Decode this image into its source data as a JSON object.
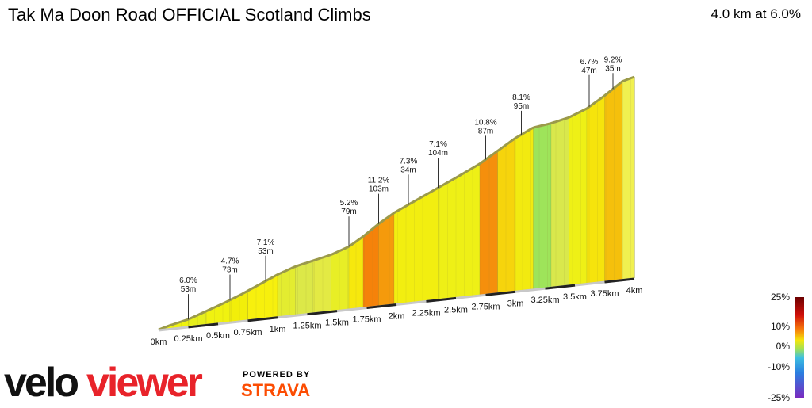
{
  "header": {
    "title": "Tak Ma Doon Road OFFICIAL Scotland Climbs",
    "summary": "4.0 km at 6.0%"
  },
  "chart_data": {
    "type": "area",
    "x_unit": "km",
    "x_ticks": [
      "0km",
      "0.25km",
      "0.5km",
      "0.75km",
      "1km",
      "1.25km",
      "1.5km",
      "1.75km",
      "2km",
      "2.25km",
      "2.5km",
      "2.75km",
      "3km",
      "3.25km",
      "3.5km",
      "3.75km",
      "4km"
    ],
    "profile": [
      {
        "d": 0.0,
        "e": 0
      },
      {
        "d": 0.1,
        "e": 4
      },
      {
        "d": 0.25,
        "e": 9
      },
      {
        "d": 0.4,
        "e": 17
      },
      {
        "d": 0.55,
        "e": 25
      },
      {
        "d": 0.7,
        "e": 34
      },
      {
        "d": 0.85,
        "e": 44
      },
      {
        "d": 1.0,
        "e": 54
      },
      {
        "d": 1.15,
        "e": 62
      },
      {
        "d": 1.3,
        "e": 67
      },
      {
        "d": 1.45,
        "e": 72
      },
      {
        "d": 1.6,
        "e": 80
      },
      {
        "d": 1.72,
        "e": 91
      },
      {
        "d": 1.85,
        "e": 105
      },
      {
        "d": 1.98,
        "e": 117
      },
      {
        "d": 2.15,
        "e": 129
      },
      {
        "d": 2.35,
        "e": 143
      },
      {
        "d": 2.55,
        "e": 157
      },
      {
        "d": 2.7,
        "e": 168
      },
      {
        "d": 2.85,
        "e": 182
      },
      {
        "d": 3.0,
        "e": 196
      },
      {
        "d": 3.15,
        "e": 207
      },
      {
        "d": 3.3,
        "e": 210
      },
      {
        "d": 3.45,
        "e": 215
      },
      {
        "d": 3.6,
        "e": 224
      },
      {
        "d": 3.75,
        "e": 238
      },
      {
        "d": 3.9,
        "e": 254
      },
      {
        "d": 4.0,
        "e": 258
      }
    ],
    "segments": [
      {
        "from": 0.0,
        "to": 0.25,
        "grade": 6.0,
        "color": "#eef20e"
      },
      {
        "from": 0.25,
        "to": 0.4,
        "grade": 4.7,
        "color": "#e6ef1c"
      },
      {
        "from": 0.4,
        "to": 0.6,
        "grade": 6.0,
        "color": "#f0f210"
      },
      {
        "from": 0.6,
        "to": 0.75,
        "grade": 7.1,
        "color": "#f2ee0a"
      },
      {
        "from": 0.75,
        "to": 1.0,
        "grade": 7.1,
        "color": "#f7f00d"
      },
      {
        "from": 1.0,
        "to": 1.15,
        "grade": 5.2,
        "color": "#e3ec30"
      },
      {
        "from": 1.15,
        "to": 1.3,
        "grade": 4.5,
        "color": "#dce848"
      },
      {
        "from": 1.3,
        "to": 1.45,
        "grade": 4.0,
        "color": "#e3ea44"
      },
      {
        "from": 1.45,
        "to": 1.6,
        "grade": 5.2,
        "color": "#e8ee26"
      },
      {
        "from": 1.6,
        "to": 1.72,
        "grade": 7.5,
        "color": "#f6e80d"
      },
      {
        "from": 1.72,
        "to": 1.85,
        "grade": 11.2,
        "color": "#f5820a"
      },
      {
        "from": 1.85,
        "to": 1.98,
        "grade": 10.5,
        "color": "#f59a0c"
      },
      {
        "from": 1.98,
        "to": 2.35,
        "grade": 7.3,
        "color": "#f2ee10"
      },
      {
        "from": 2.35,
        "to": 2.7,
        "grade": 7.1,
        "color": "#eef016"
      },
      {
        "from": 2.7,
        "to": 2.85,
        "grade": 10.8,
        "color": "#f58f0c"
      },
      {
        "from": 2.85,
        "to": 3.0,
        "grade": 9.0,
        "color": "#f6d40c"
      },
      {
        "from": 3.0,
        "to": 3.15,
        "grade": 8.1,
        "color": "#f2ea10"
      },
      {
        "from": 3.15,
        "to": 3.3,
        "grade": 2.0,
        "color": "#9ee45a"
      },
      {
        "from": 3.3,
        "to": 3.45,
        "grade": 3.5,
        "color": "#d9e84c"
      },
      {
        "from": 3.45,
        "to": 3.6,
        "grade": 6.7,
        "color": "#eef016"
      },
      {
        "from": 3.6,
        "to": 3.75,
        "grade": 8.0,
        "color": "#f6e40c"
      },
      {
        "from": 3.75,
        "to": 3.9,
        "grade": 9.2,
        "color": "#f5c00c"
      },
      {
        "from": 3.9,
        "to": 4.0,
        "grade": 9.2,
        "color": "#f0f050"
      }
    ],
    "callouts": [
      {
        "d": 0.25,
        "grade": "6.0%",
        "dist": "53m",
        "h": 32
      },
      {
        "d": 0.6,
        "grade": "4.7%",
        "dist": "73m",
        "h": 32
      },
      {
        "d": 0.9,
        "grade": "7.1%",
        "dist": "53m",
        "h": 32
      },
      {
        "d": 1.6,
        "grade": "5.2%",
        "dist": "79m",
        "h": 38
      },
      {
        "d": 1.85,
        "grade": "11.2%",
        "dist": "103m",
        "h": 38
      },
      {
        "d": 2.1,
        "grade": "7.3%",
        "dist": "34m",
        "h": 38
      },
      {
        "d": 2.35,
        "grade": "7.1%",
        "dist": "104m",
        "h": 38
      },
      {
        "d": 2.75,
        "grade": "10.8%",
        "dist": "87m",
        "h": 30
      },
      {
        "d": 3.05,
        "grade": "8.1%",
        "dist": "95m",
        "h": 30
      },
      {
        "d": 3.62,
        "grade": "6.7%",
        "dist": "47m",
        "h": 40
      },
      {
        "d": 3.82,
        "grade": "9.2%",
        "dist": "35m",
        "h": 20
      }
    ]
  },
  "gradient_scale": {
    "labels": [
      "25%",
      "10%",
      "0%",
      "-10%",
      "-25%"
    ]
  },
  "branding": {
    "velo": "velo",
    "viewer": "viewer",
    "powered_by": "POWERED BY",
    "strava": "STRAVA"
  },
  "colors": {
    "brand_red": "#e8232a",
    "strava_orange": "#fc4c02",
    "edge_olive": "#9b9a4a"
  }
}
